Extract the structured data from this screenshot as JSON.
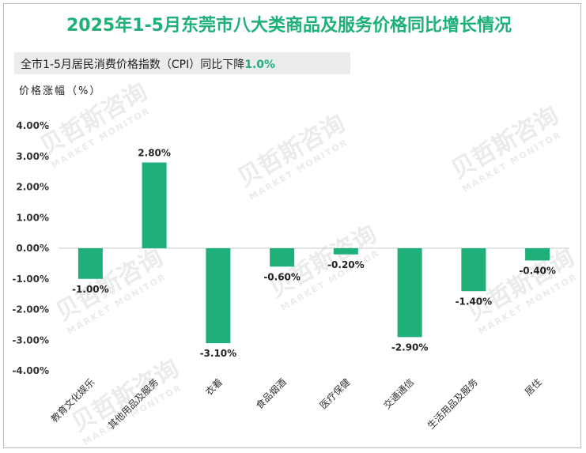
{
  "header": {
    "title": "2025年1-5月东莞市八大类商品及服务价格同比增长情况",
    "subtitle_prefix": "全市1-5月居民消费价格指数（CPI）同比下降",
    "subtitle_value": "1.0%",
    "y_axis_label": "价格涨幅（%）"
  },
  "watermark": {
    "text": "贝哲斯咨询",
    "subtext": "MARKET MONITOR"
  },
  "colors": {
    "bar": "#1fb07a",
    "title": "#1fb07a",
    "axis": "#c8c8c8"
  },
  "chart_data": {
    "type": "bar",
    "title": "2025年1-5月东莞市八大类商品及服务价格同比增长情况",
    "ylabel": "价格涨幅（%）",
    "xlabel": "",
    "categories": [
      "教育文化娱乐",
      "其他用品及服务",
      "衣着",
      "食品烟酒",
      "医疗保健",
      "交通通信",
      "生活用品及服务",
      "居住"
    ],
    "values": [
      -1.0,
      2.8,
      -3.1,
      -0.6,
      -0.2,
      -2.9,
      -1.4,
      -0.4
    ],
    "value_labels": [
      "-1.00%",
      "2.80%",
      "-3.10%",
      "-0.60%",
      "-0.20%",
      "-2.90%",
      "-1.40%",
      "-0.40%"
    ],
    "ylim": [
      -4,
      4
    ],
    "yticks": [
      4,
      3,
      2,
      1,
      0,
      -1,
      -2,
      -3,
      -4
    ],
    "ytick_labels": [
      "4.00%",
      "3.00%",
      "2.00%",
      "1.00%",
      "0.00%",
      "-1.00%",
      "-2.00%",
      "-3.00%",
      "-4.00%"
    ],
    "grid": false,
    "legend": "none"
  }
}
